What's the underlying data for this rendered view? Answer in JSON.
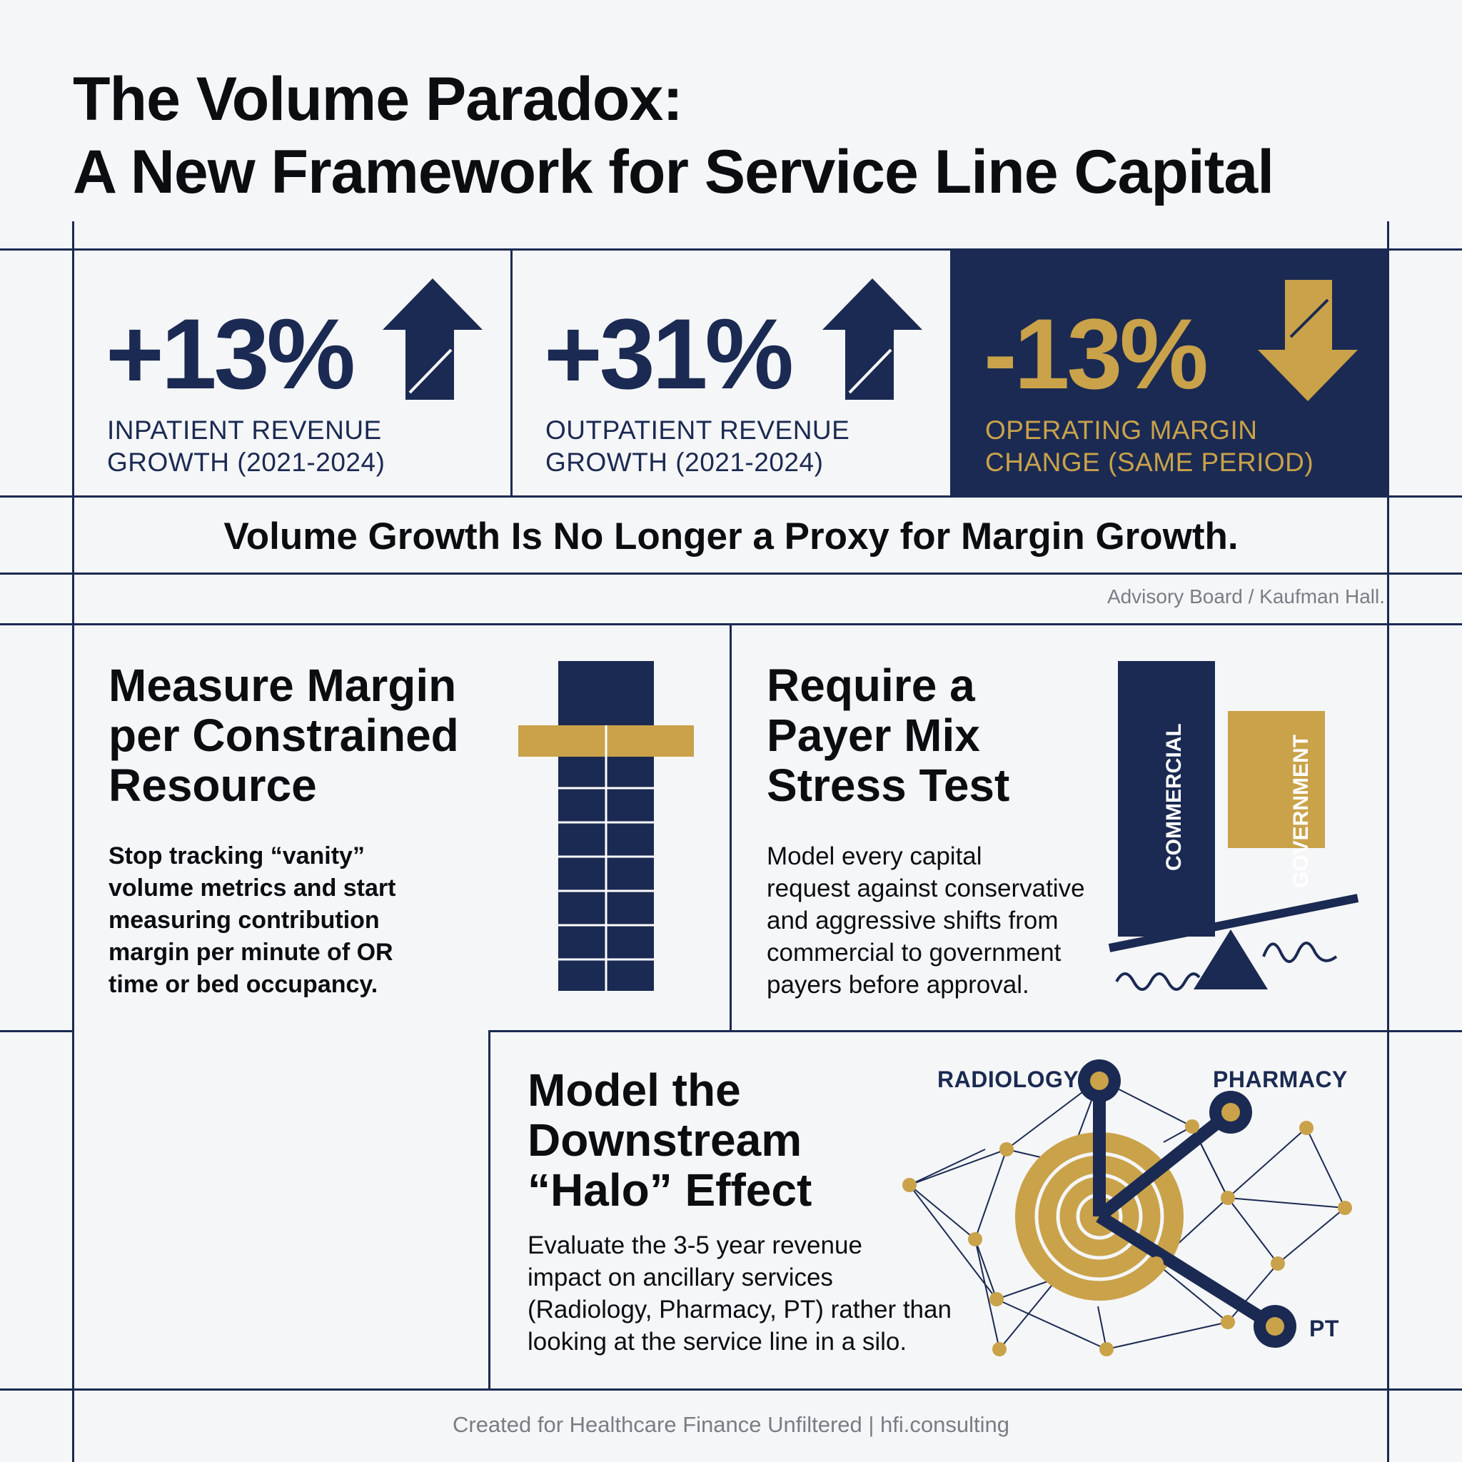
{
  "title": {
    "line1": "The Volume Paradox:",
    "line2": "A New Framework for Service Line Capital"
  },
  "stats": [
    {
      "value": "+13%",
      "label_line1": "INPATIENT REVENUE",
      "label_line2": "GROWTH (2021-2024)",
      "direction": "up",
      "arrow_icon": "arrow-up-icon"
    },
    {
      "value": "+31%",
      "label_line1": "OUTPATIENT REVENUE",
      "label_line2": "GROWTH (2021-2024)",
      "direction": "up",
      "arrow_icon": "arrow-up-icon"
    },
    {
      "value": "-13%",
      "label_line1": "OPERATING MARGIN",
      "label_line2": "CHANGE (SAME PERIOD)",
      "direction": "down",
      "arrow_icon": "arrow-down-icon"
    }
  ],
  "banner": "Volume Growth Is No Longer a Proxy for Margin Growth.",
  "source": "Advisory Board / Kaufman Hall.",
  "sections": {
    "measure": {
      "heading": [
        "Measure Margin",
        "per Constrained",
        "Resource"
      ],
      "body": [
        "Stop tracking “vanity”",
        "volume metrics and start",
        "measuring contribution",
        "margin per minute of OR",
        "time or bed occupancy."
      ],
      "icon": "constrained-resource-icon"
    },
    "payer": {
      "heading": [
        "Require a",
        "Payer Mix",
        "Stress Test"
      ],
      "body": [
        "Model every capital",
        "request against conservative",
        "and aggressive shifts from",
        "commercial to government",
        "payers before approval."
      ],
      "bar_labels": {
        "commercial": "COMMERCIAL",
        "government": "GOVERNMENT"
      },
      "icon": "balance-scale-icon"
    },
    "halo": {
      "heading": [
        "Model the",
        "Downstream",
        "“Halo” Effect"
      ],
      "body": [
        "Evaluate the 3-5 year revenue",
        "impact on ancillary services",
        "(Radiology, Pharmacy, PT) rather than",
        "looking at the service line in a silo."
      ],
      "nodes": {
        "radiology": "RADIOLOGY",
        "pharmacy": "PHARMACY",
        "pt": "PT"
      },
      "icon": "network-halo-icon"
    }
  },
  "footer": "Created for Healthcare Finance Unfiltered | hfi.consulting",
  "colors": {
    "navy": "#1b2a52",
    "gold": "#c9a24a",
    "background": "#f5f6f8"
  }
}
